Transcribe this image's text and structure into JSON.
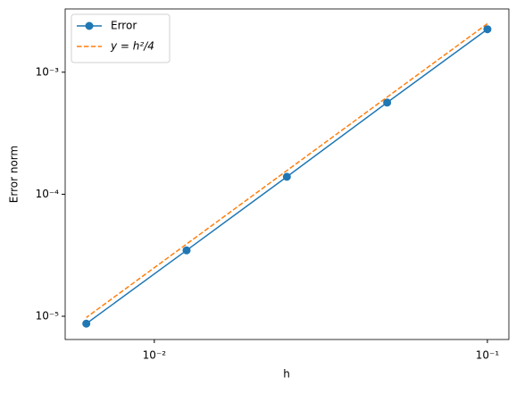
{
  "chart_data": {
    "type": "line",
    "x_label": "h",
    "y_label": "Error norm",
    "x": [
      0.1,
      0.05,
      0.025,
      0.0125,
      0.00625
    ],
    "series": [
      {
        "name": "Error",
        "color": "#1f77b4",
        "values": [
          0.00225,
          0.000564,
          0.000139,
          3.47e-05,
          8.7e-06
        ],
        "marker": "o",
        "dash": false
      },
      {
        "name": "y = h²/4",
        "color": "#ff7f0e",
        "values": [
          0.0025,
          0.000625,
          0.00015625,
          3.90625e-05,
          9.765625e-06
        ],
        "marker": "none",
        "dash": true
      }
    ],
    "xscale": "log",
    "yscale": "log",
    "xlim": [
      0.0054,
      0.116
    ],
    "ylim": [
      6.45e-06,
      0.0033
    ],
    "xticks": [
      {
        "value": 0.01,
        "label": "10⁻²"
      },
      {
        "value": 0.1,
        "label": "10⁻¹"
      }
    ],
    "yticks": [
      {
        "value": 1e-05,
        "label": "10⁻⁵"
      },
      {
        "value": 0.0001,
        "label": "10⁻⁴"
      },
      {
        "value": 0.001,
        "label": "10⁻³"
      }
    ],
    "grid": false,
    "legend": "upper left"
  }
}
